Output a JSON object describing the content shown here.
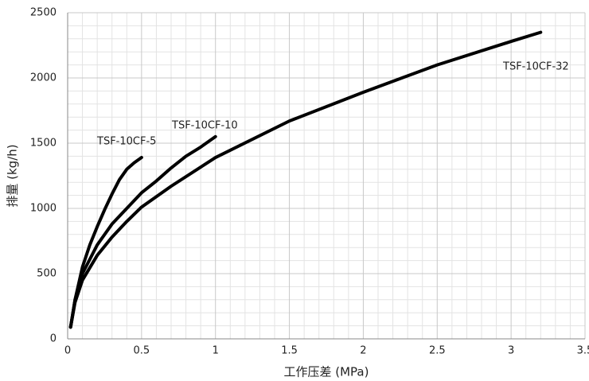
{
  "chart_data": {
    "type": "line",
    "x_label": "工作压差 (MPa)",
    "y_label": "排量 (kg/h)",
    "xlim": [
      0,
      3.5
    ],
    "xticks": [
      0,
      0.5,
      1,
      1.5,
      2,
      2.5,
      3,
      3.5
    ],
    "ylim": [
      0,
      2500
    ],
    "yticks": [
      0,
      500,
      1000,
      1500,
      2000,
      2500
    ],
    "grid": true,
    "series": [
      {
        "name": "TSF-10CF-5",
        "color": "#000000",
        "x": [
          0.02,
          0.05,
          0.1,
          0.15,
          0.2,
          0.25,
          0.3,
          0.35,
          0.4,
          0.45,
          0.5
        ],
        "values": [
          90,
          300,
          550,
          720,
          860,
          990,
          1110,
          1220,
          1300,
          1350,
          1390
        ]
      },
      {
        "name": "TSF-10CF-10",
        "color": "#000000",
        "x": [
          0.02,
          0.05,
          0.1,
          0.2,
          0.3,
          0.4,
          0.5,
          0.6,
          0.7,
          0.8,
          0.9,
          1.0
        ],
        "values": [
          90,
          300,
          500,
          720,
          880,
          1000,
          1120,
          1210,
          1310,
          1400,
          1470,
          1550
        ]
      },
      {
        "name": "TSF-10CF-32",
        "color": "#000000",
        "x": [
          0.02,
          0.05,
          0.1,
          0.2,
          0.3,
          0.4,
          0.5,
          0.7,
          1.0,
          1.5,
          2.0,
          2.5,
          3.0,
          3.2
        ],
        "values": [
          90,
          280,
          450,
          640,
          780,
          900,
          1010,
          1170,
          1390,
          1670,
          1890,
          2100,
          2280,
          2350
        ]
      }
    ]
  }
}
